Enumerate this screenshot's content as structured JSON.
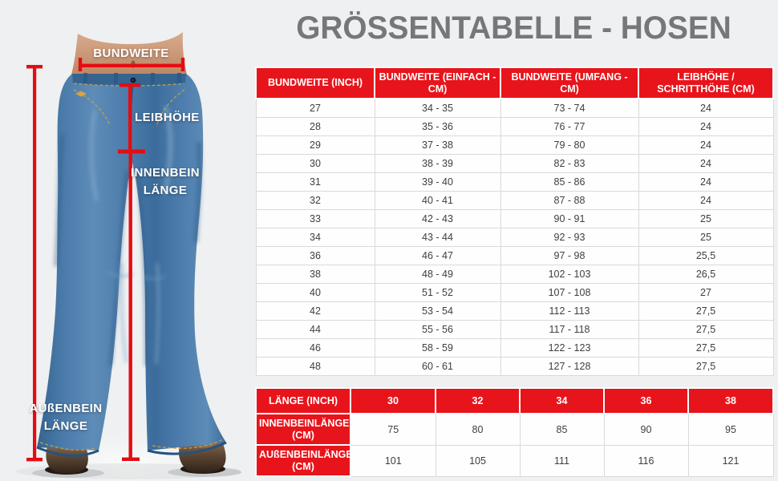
{
  "title": "GRÖSSENTABELLE - HOSEN",
  "diagram": {
    "labels": {
      "bundweite": "BUNDWEITE",
      "leibhoehe": "LEIBHÖHE",
      "innenbein_line1": "INNENBEIN",
      "innenbein_line2": "LÄNGE",
      "aussenbein_line1": "AUßENBEIN",
      "aussenbein_line2": "LÄNGE"
    }
  },
  "size_table": {
    "headers": [
      "BUNDWEITE (INCH)",
      "BUNDWEITE (EINFACH - CM)",
      "BUNDWEITE (UMFANG - CM)",
      "LEIBHÖHE / SCHRITTHÖHE (CM)"
    ],
    "rows": [
      [
        "27",
        "34 - 35",
        "73 - 74",
        "24"
      ],
      [
        "28",
        "35 - 36",
        "76 - 77",
        "24"
      ],
      [
        "29",
        "37 - 38",
        "79 - 80",
        "24"
      ],
      [
        "30",
        "38 - 39",
        "82 - 83",
        "24"
      ],
      [
        "31",
        "39 - 40",
        "85 - 86",
        "24"
      ],
      [
        "32",
        "40 - 41",
        "87 - 88",
        "24"
      ],
      [
        "33",
        "42 - 43",
        "90 - 91",
        "25"
      ],
      [
        "34",
        "43 - 44",
        "92 - 93",
        "25"
      ],
      [
        "36",
        "46 - 47",
        "97 - 98",
        "25,5"
      ],
      [
        "38",
        "48 - 49",
        "102 - 103",
        "26,5"
      ],
      [
        "40",
        "51 - 52",
        "107 - 108",
        "27"
      ],
      [
        "42",
        "53 - 54",
        "112 - 113",
        "27,5"
      ],
      [
        "44",
        "55 - 56",
        "117 - 118",
        "27,5"
      ],
      [
        "46",
        "58 - 59",
        "122 - 123",
        "27,5"
      ],
      [
        "48",
        "60 - 61",
        "127 - 128",
        "27,5"
      ]
    ]
  },
  "length_table": {
    "headers": [
      "LÄNGE (INCH)",
      "30",
      "32",
      "34",
      "36",
      "38"
    ],
    "rows": [
      [
        "INNENBEINLÄNGE (CM)",
        "75",
        "80",
        "85",
        "90",
        "95"
      ],
      [
        "AUßENBEINLÄNGE (CM)",
        "101",
        "105",
        "111",
        "116",
        "121"
      ]
    ]
  },
  "colors": {
    "accent_red": "#e8141b",
    "measure_line_red": "#e30d13",
    "title_gray": "#76777a",
    "background": "#eef0f1",
    "denim_blue": "#4a7aa9"
  }
}
